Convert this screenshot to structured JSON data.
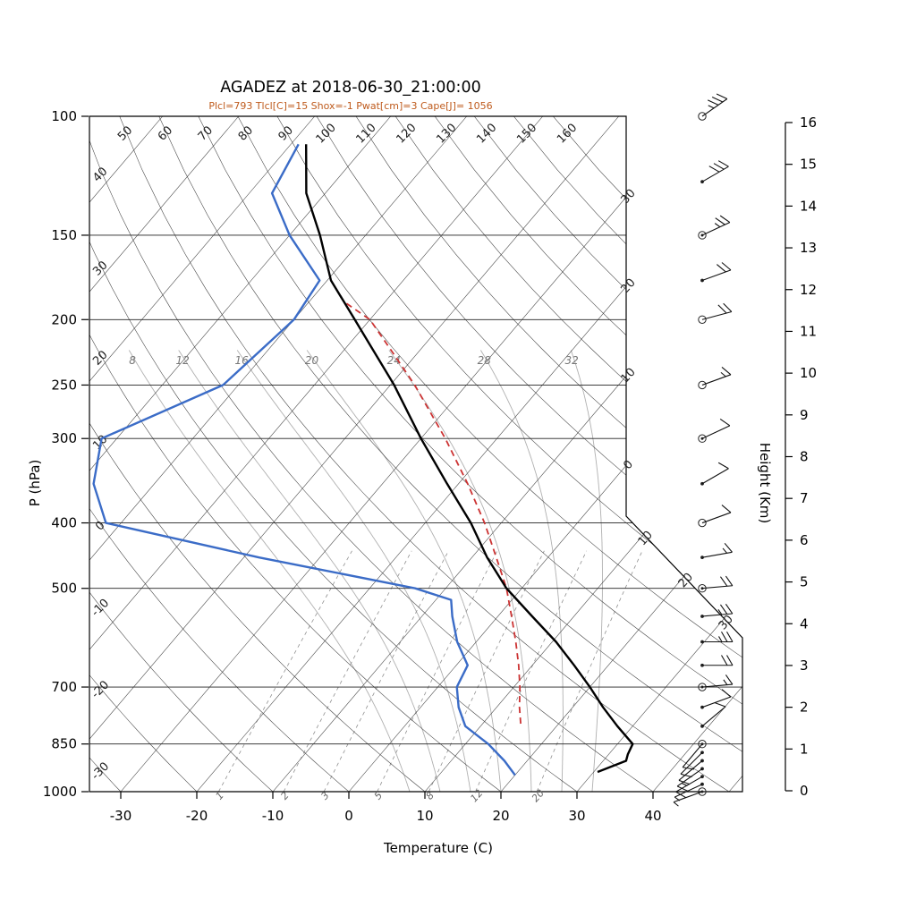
{
  "chart_data": {
    "type": "skewt_log_p_sounding",
    "title": "AGADEZ at 2018-06-30_21:00:00",
    "subtitle": "Plcl=793 Tlcl[C]=15 Shox=-1 Pwat[cm]=3 Cape[J]= 1056",
    "station": "AGADEZ",
    "datetime": "2018-06-30_21:00:00",
    "indices": {
      "Plcl": 793,
      "Tlcl_C": 15,
      "Shox": -1,
      "Pwat_cm": 3,
      "Cape_J": 1056
    },
    "axes": {
      "pressure": {
        "label": "P (hPa)",
        "scale": "log",
        "range_hpa": [
          100,
          1000
        ],
        "ticks": [
          100,
          150,
          200,
          250,
          300,
          400,
          500,
          700,
          850,
          1000
        ]
      },
      "temperature": {
        "label": "Temperature (C)",
        "ticks": [
          -30,
          -20,
          -10,
          0,
          10,
          20,
          30,
          40
        ]
      },
      "height": {
        "label": "Height (Km)",
        "range_km": [
          0,
          16
        ],
        "ticks": [
          0,
          1,
          2,
          3,
          4,
          5,
          6,
          7,
          8,
          9,
          10,
          11,
          12,
          13,
          14,
          15,
          16
        ]
      }
    },
    "grid": {
      "isotherms_c": {
        "start": -110,
        "end": 50,
        "step": 10
      },
      "isotherm_edge_labels": [
        {
          "t": -30,
          "text": "30"
        },
        {
          "t": -20,
          "text": "20"
        },
        {
          "t": -10,
          "text": "10"
        },
        {
          "t": 0,
          "text": "0"
        },
        {
          "t": 10,
          "text": "10"
        },
        {
          "t": 20,
          "text": "20"
        },
        {
          "t": 30,
          "text": "30"
        }
      ],
      "dry_adiabats_c": {
        "start": -30,
        "end": 160,
        "step": 10
      },
      "dry_adiabat_top_labels": [
        50,
        60,
        70,
        80,
        90,
        100,
        110,
        120,
        130,
        140,
        150,
        160
      ],
      "dry_adiabat_left_labels": [
        40,
        30,
        20,
        10,
        0,
        -10,
        -20,
        -30
      ],
      "moist_adiabats_c": [
        8,
        12,
        16,
        20,
        24,
        28,
        32
      ],
      "mixing_ratio_g_kg": [
        1,
        2,
        3,
        5,
        8,
        12,
        20
      ]
    },
    "sounding": {
      "temperature_profile": [
        [
          935,
          30.5
        ],
        [
          900,
          33
        ],
        [
          880,
          32.5
        ],
        [
          850,
          32
        ],
        [
          800,
          28
        ],
        [
          750,
          24
        ],
        [
          700,
          20
        ],
        [
          650,
          15.5
        ],
        [
          600,
          10.5
        ],
        [
          550,
          4.5
        ],
        [
          500,
          -2
        ],
        [
          450,
          -8
        ],
        [
          400,
          -14
        ],
        [
          350,
          -21.5
        ],
        [
          300,
          -30
        ],
        [
          250,
          -39.5
        ],
        [
          200,
          -52
        ],
        [
          175,
          -59.5
        ],
        [
          150,
          -66
        ],
        [
          130,
          -72.5
        ],
        [
          110,
          -78
        ]
      ],
      "dewpoint_profile": [
        [
          945,
          20
        ],
        [
          900,
          17
        ],
        [
          850,
          13
        ],
        [
          800,
          8
        ],
        [
          750,
          5
        ],
        [
          700,
          2.5
        ],
        [
          650,
          1.5
        ],
        [
          600,
          -2.5
        ],
        [
          550,
          -6
        ],
        [
          520,
          -8
        ],
        [
          500,
          -14
        ],
        [
          450,
          -38
        ],
        [
          400,
          -62
        ],
        [
          350,
          -68
        ],
        [
          300,
          -72
        ],
        [
          250,
          -62
        ],
        [
          200,
          -60
        ],
        [
          175,
          -61
        ],
        [
          150,
          -70
        ],
        [
          130,
          -77
        ],
        [
          110,
          -79
        ]
      ],
      "parcel_profile": [
        [
          793,
          15
        ],
        [
          750,
          13
        ],
        [
          700,
          10.8
        ],
        [
          650,
          8.2
        ],
        [
          600,
          5.2
        ],
        [
          550,
          1.8
        ],
        [
          500,
          -2
        ],
        [
          450,
          -6.8
        ],
        [
          400,
          -12.2
        ],
        [
          350,
          -18.8
        ],
        [
          300,
          -26.8
        ],
        [
          250,
          -36.8
        ],
        [
          225,
          -43
        ],
        [
          200,
          -50
        ],
        [
          188,
          -55.5
        ]
      ],
      "wind_profile": [
        [
          1000,
          5,
          250,
          "circledot"
        ],
        [
          975,
          5,
          245,
          "dot"
        ],
        [
          950,
          10,
          240,
          "dot"
        ],
        [
          925,
          15,
          235,
          "dot"
        ],
        [
          900,
          10,
          230,
          "dot"
        ],
        [
          875,
          10,
          225,
          "dot"
        ],
        [
          850,
          10,
          220,
          "circledot"
        ],
        [
          800,
          10,
          50,
          "dot"
        ],
        [
          750,
          10,
          70,
          "dot"
        ],
        [
          700,
          15,
          85,
          "circledot"
        ],
        [
          650,
          20,
          90,
          "dot"
        ],
        [
          600,
          25,
          90,
          "dot"
        ],
        [
          550,
          25,
          85,
          "dot"
        ],
        [
          500,
          20,
          85,
          "circledot"
        ],
        [
          450,
          15,
          80,
          "dot"
        ],
        [
          400,
          10,
          70,
          "circle"
        ],
        [
          350,
          10,
          60,
          "dot"
        ],
        [
          300,
          10,
          65,
          "circledot"
        ],
        [
          250,
          15,
          70,
          "circle"
        ],
        [
          200,
          20,
          75,
          "circle"
        ],
        [
          175,
          20,
          70,
          "dot"
        ],
        [
          150,
          25,
          65,
          "circledot"
        ],
        [
          125,
          30,
          60,
          "dot"
        ],
        [
          100,
          35,
          55,
          "circle"
        ]
      ]
    },
    "colors": {
      "temperature_curve": "#000000",
      "dewpoint_curve": "#3b6cc7",
      "parcel_curve": "#cc3333",
      "grid_line": "#3c3c3c",
      "moist_adiabat": "#b0b0b0",
      "mixing_ratio": "#909090",
      "subtitle": "#bf5b1d"
    }
  }
}
